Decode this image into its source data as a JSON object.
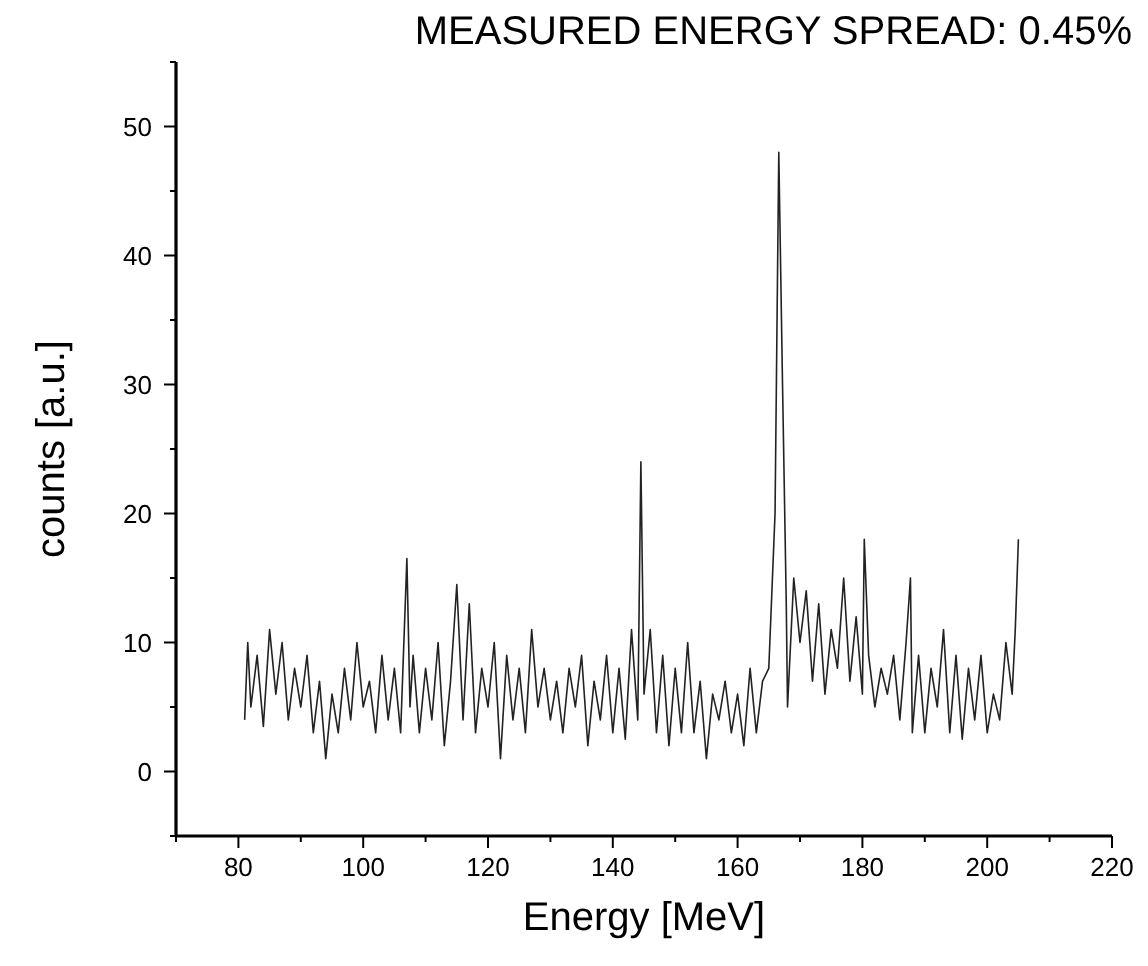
{
  "chart_data": {
    "type": "line",
    "title": "MEASURED ENERGY SPREAD: 0.45%",
    "xlabel": "Energy [MeV]",
    "ylabel": "counts [a.u.]",
    "x": [
      81,
      81.5,
      82,
      83,
      84,
      85,
      86,
      87,
      88,
      89,
      90,
      91,
      92,
      93,
      94,
      95,
      96,
      97,
      98,
      99,
      100,
      101,
      102,
      103,
      104,
      105,
      106,
      107,
      107.5,
      108,
      109,
      110,
      111,
      112,
      113,
      114,
      115,
      116,
      117,
      118,
      119,
      120,
      121,
      122,
      123,
      124,
      125,
      126,
      127,
      128,
      129,
      130,
      131,
      132,
      133,
      134,
      135,
      136,
      137,
      138,
      139,
      140,
      141,
      142,
      143,
      144,
      144.5,
      145,
      146,
      147,
      148,
      149,
      150,
      151,
      152,
      153,
      154,
      155,
      156,
      157,
      158,
      159,
      160,
      161,
      162,
      163,
      164,
      165,
      166,
      166.6,
      167.2,
      167.8,
      168,
      169,
      170,
      171,
      172,
      173,
      174,
      175,
      176,
      177,
      178,
      179,
      180,
      180.3,
      181,
      182,
      183,
      184,
      185,
      186,
      187,
      187.7,
      188,
      189,
      190,
      191,
      192,
      193,
      194,
      195,
      196,
      197,
      198,
      199,
      200,
      201,
      202,
      203,
      204,
      204.5,
      205
    ],
    "series": [
      {
        "color": "#222222",
        "values": [
          4,
          10,
          5,
          9,
          3.5,
          11,
          6,
          10,
          4,
          8,
          5,
          9,
          3,
          7,
          1,
          6,
          3,
          8,
          4,
          10,
          5,
          7,
          3,
          9,
          4,
          8,
          3,
          16.5,
          5,
          9,
          3,
          8,
          4,
          10,
          2,
          7,
          14.5,
          4,
          13,
          3,
          8,
          5,
          10,
          1,
          9,
          4,
          8,
          3,
          11,
          5,
          8,
          4,
          7,
          3,
          8,
          5,
          9,
          2,
          7,
          4,
          9,
          3,
          8,
          2.5,
          11,
          4,
          24,
          6,
          11,
          3,
          9,
          2,
          8,
          3,
          10,
          3,
          7,
          1,
          6,
          4,
          7,
          3,
          6,
          2,
          8,
          3,
          7,
          8,
          20,
          48,
          30,
          13,
          5,
          15,
          10,
          14,
          7,
          13,
          6,
          11,
          8,
          15,
          7,
          12,
          6,
          18,
          9,
          5,
          8,
          6,
          9,
          4,
          10,
          15,
          3,
          9,
          3,
          8,
          5,
          11,
          3,
          9,
          2.5,
          8,
          4,
          9,
          3,
          6,
          4,
          10,
          6,
          11,
          18
        ]
      }
    ],
    "xlim": [
      70,
      220
    ],
    "ylim": [
      -5,
      55
    ],
    "xticks": [
      {
        "value": 70,
        "label": null
      },
      80,
      {
        "value": 90,
        "label": null
      },
      100,
      {
        "value": 110,
        "label": null
      },
      120,
      {
        "value": 130,
        "label": null
      },
      140,
      {
        "value": 150,
        "label": null
      },
      160,
      {
        "value": 170,
        "label": null
      },
      180,
      {
        "value": 190,
        "label": null
      },
      200,
      {
        "value": 210,
        "label": null
      },
      220
    ],
    "yticks": [
      {
        "value": -5,
        "label": null
      },
      0,
      {
        "value": 5,
        "label": null
      },
      10,
      {
        "value": 15,
        "label": null
      },
      20,
      {
        "value": 25,
        "label": null
      },
      30,
      {
        "value": 35,
        "label": null
      },
      40,
      {
        "value": 45,
        "label": null
      },
      50,
      {
        "value": 55,
        "label": null
      }
    ],
    "grid": false,
    "marker": "none",
    "line_style": "solid"
  }
}
